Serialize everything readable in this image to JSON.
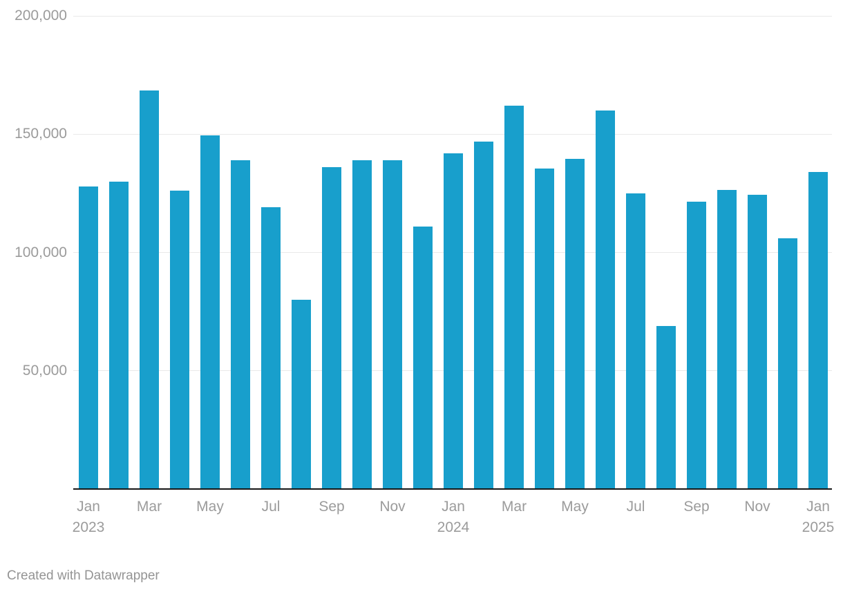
{
  "chart_data": {
    "type": "bar",
    "title": "",
    "xlabel": "",
    "ylabel": "",
    "ylim": [
      0,
      200000
    ],
    "grid": "horizontal-gridlines-only",
    "legend": "none",
    "bar_color": "#189fcc",
    "categories": [
      "Jan 2023",
      "Feb 2023",
      "Mar 2023",
      "Apr 2023",
      "May 2023",
      "Jun 2023",
      "Jul 2023",
      "Aug 2023",
      "Sep 2023",
      "Oct 2023",
      "Nov 2023",
      "Dec 2023",
      "Jan 2024",
      "Feb 2024",
      "Mar 2024",
      "Apr 2024",
      "May 2024",
      "Jun 2024",
      "Jul 2024",
      "Aug 2024",
      "Sep 2024",
      "Oct 2024",
      "Nov 2024",
      "Dec 2024",
      "Jan 2025"
    ],
    "values": [
      128000,
      130000,
      168500,
      126000,
      149500,
      139000,
      119000,
      80000,
      136000,
      139000,
      139000,
      111000,
      142000,
      147000,
      162000,
      135500,
      139500,
      160000,
      125000,
      69000,
      121500,
      126500,
      124500,
      106000,
      134000
    ],
    "y_ticks": [
      {
        "value": 50000,
        "label": "50,000"
      },
      {
        "value": 100000,
        "label": "100,000"
      },
      {
        "value": 150000,
        "label": "150,000"
      },
      {
        "value": 200000,
        "label": "200,000"
      }
    ],
    "x_ticks": [
      {
        "index": 0,
        "label": "Jan",
        "year": "2023"
      },
      {
        "index": 2,
        "label": "Mar"
      },
      {
        "index": 4,
        "label": "May"
      },
      {
        "index": 6,
        "label": "Jul"
      },
      {
        "index": 8,
        "label": "Sep"
      },
      {
        "index": 10,
        "label": "Nov"
      },
      {
        "index": 12,
        "label": "Jan",
        "year": "2024"
      },
      {
        "index": 14,
        "label": "Mar"
      },
      {
        "index": 16,
        "label": "May"
      },
      {
        "index": 18,
        "label": "Jul"
      },
      {
        "index": 20,
        "label": "Sep"
      },
      {
        "index": 22,
        "label": "Nov"
      },
      {
        "index": 24,
        "label": "Jan",
        "year": "2025"
      }
    ]
  },
  "footer": {
    "credit": "Created with Datawrapper"
  },
  "colors": {
    "bar": "#189fcc",
    "gridline": "#e9e9e9",
    "axis_line": "#161616",
    "tick_text": "#9b9b9b",
    "footer_text": "#949494",
    "background": "#ffffff"
  }
}
